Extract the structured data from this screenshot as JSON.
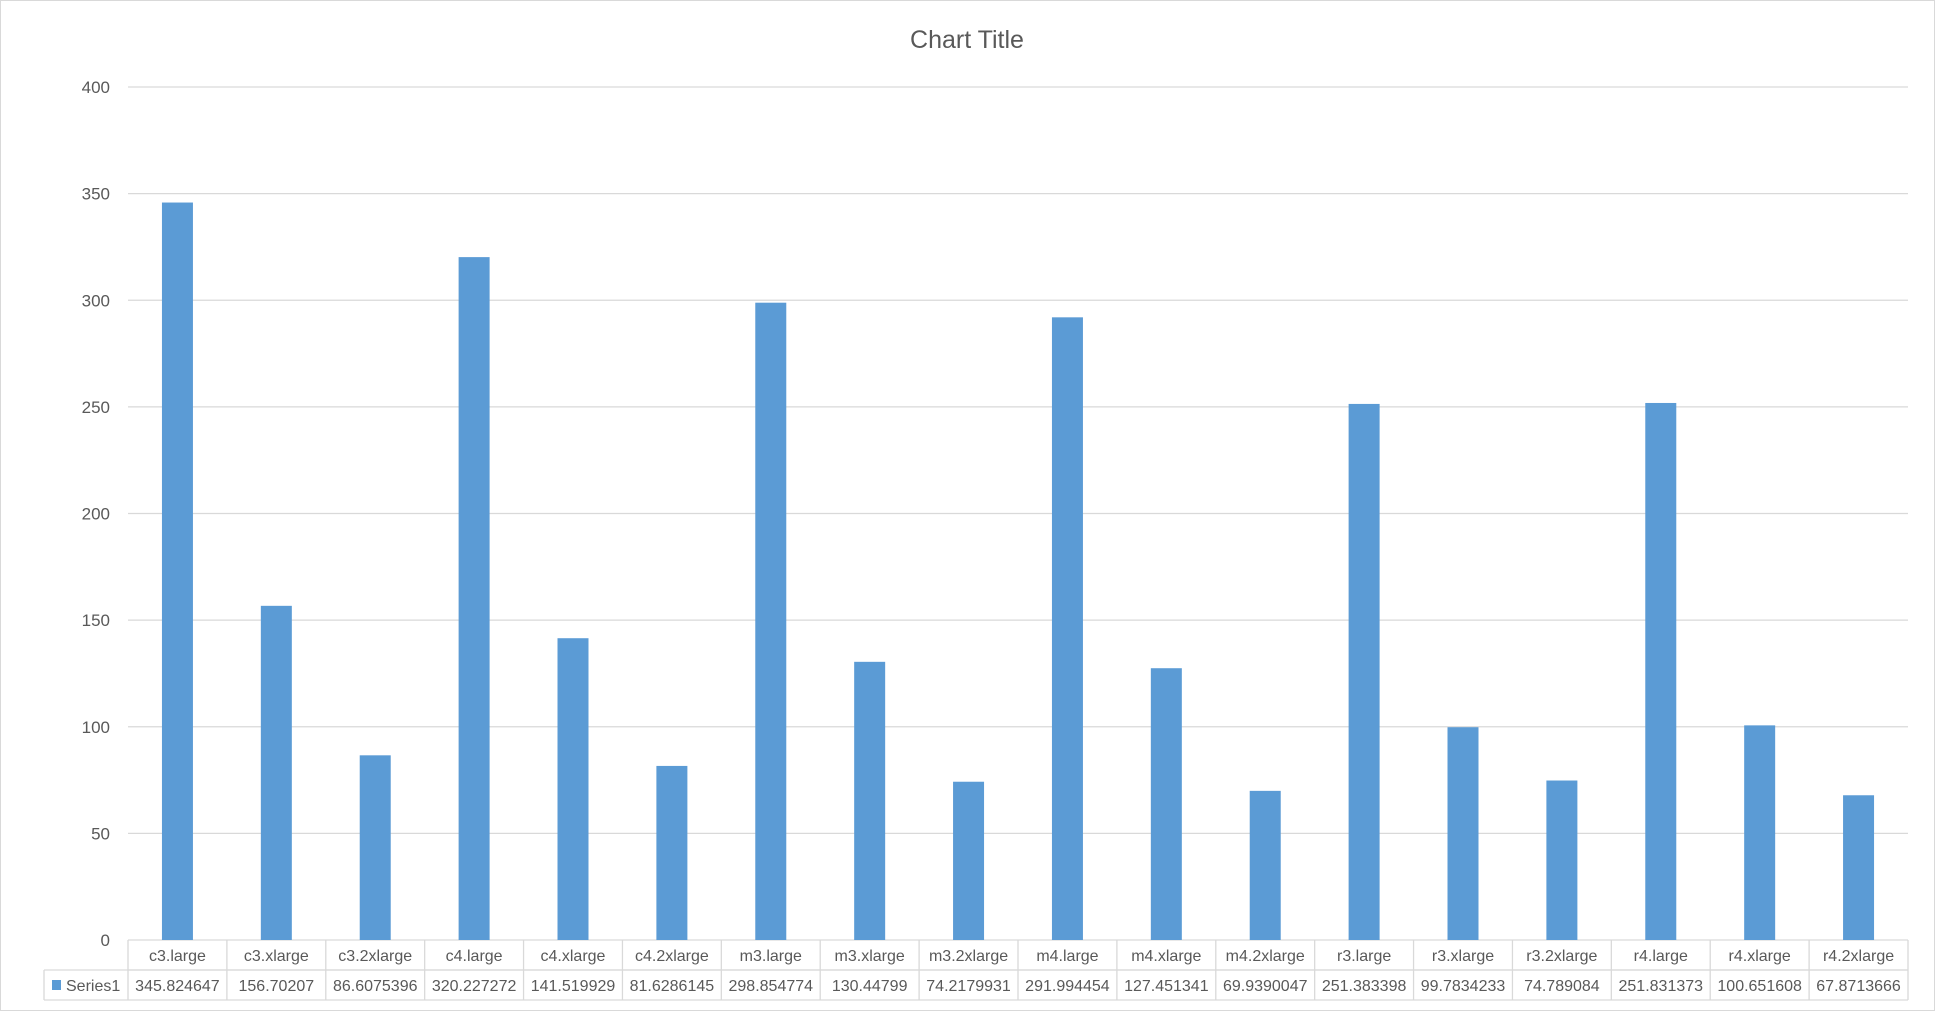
{
  "chart_data": {
    "type": "bar",
    "title": "Chart Title",
    "xlabel": "",
    "ylabel": "",
    "ylim": [
      0,
      400
    ],
    "ytick_step": 50,
    "grid": true,
    "legend": "data-table",
    "categories": [
      "c3.large",
      "c3.xlarge",
      "c3.2xlarge",
      "c4.large",
      "c4.xlarge",
      "c4.2xlarge",
      "m3.large",
      "m3.xlarge",
      "m3.2xlarge",
      "m4.large",
      "m4.xlarge",
      "m4.2xlarge",
      "r3.large",
      "r3.xlarge",
      "r3.2xlarge",
      "r4.large",
      "r4.xlarge",
      "r4.2xlarge"
    ],
    "series": [
      {
        "name": "Series1",
        "color": "#5B9BD5",
        "values": [
          345.824647,
          156.70207,
          86.6075396,
          320.227272,
          141.519929,
          81.6286145,
          298.854774,
          130.44799,
          74.2179931,
          291.994454,
          127.451341,
          69.9390047,
          251.383398,
          99.7834233,
          74.789084,
          251.831373,
          100.651608,
          67.8713666
        ],
        "labels": [
          "345.824647",
          "156.70207",
          "86.6075396",
          "320.227272",
          "141.519929",
          "81.6286145",
          "298.854774",
          "130.44799",
          "74.2179931",
          "291.994454",
          "127.451341",
          "69.9390047",
          "251.383398",
          "99.7834233",
          "74.789084",
          "251.831373",
          "100.651608",
          "67.8713666"
        ]
      }
    ]
  }
}
